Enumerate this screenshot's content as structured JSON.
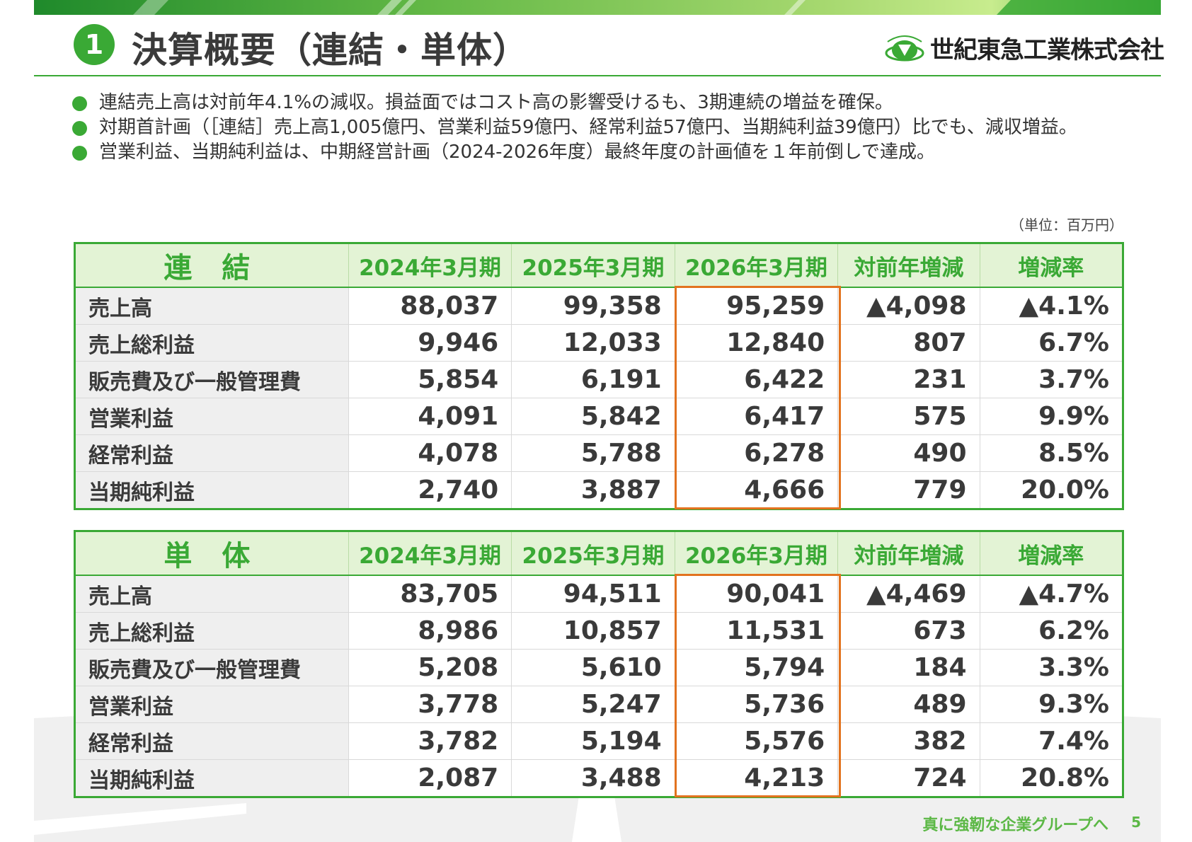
{
  "colors": {
    "accent": "#3aa935",
    "header_fill": "#e3f3d5",
    "highlight": "#e2731f"
  },
  "header": {
    "section_number": "1",
    "title": "決算概要（連結・単体）",
    "logo_text": "世紀東急工業株式会社",
    "logo_icon": "company-logo-icon"
  },
  "bullets": [
    "連結売上高は対前年4.1%の減収。損益面ではコスト高の影響受けるも、3期連続の増益を確保。",
    "対期首計画（［連結］売上高1,005億円、営業利益59億円、経常利益57億円、当期純利益39億円）比でも、減収増益。",
    "営業利益、当期純利益は、中期経営計画（2024-2026年度）最終年度の計画値を１年前倒しで達成。"
  ],
  "unit_note": "（単位：百万円）",
  "consolidated": {
    "section_label": "連 結",
    "headers": [
      "2024年3月期",
      "2025年3月期",
      "2026年3月期",
      "対前年増減",
      "増減率"
    ],
    "rows": [
      {
        "label": "売上高",
        "values": [
          "88,037",
          "99,358",
          "95,259",
          "▲4,098",
          "▲4.1%"
        ]
      },
      {
        "label": "売上総利益",
        "values": [
          "9,946",
          "12,033",
          "12,840",
          "807",
          "6.7%"
        ]
      },
      {
        "label": "販売費及び一般管理費",
        "values": [
          "5,854",
          "6,191",
          "6,422",
          "231",
          "3.7%"
        ]
      },
      {
        "label": "営業利益",
        "values": [
          "4,091",
          "5,842",
          "6,417",
          "575",
          "9.9%"
        ]
      },
      {
        "label": "経常利益",
        "values": [
          "4,078",
          "5,788",
          "6,278",
          "490",
          "8.5%"
        ]
      },
      {
        "label": "当期純利益",
        "values": [
          "2,740",
          "3,887",
          "4,666",
          "779",
          "20.0%"
        ]
      }
    ]
  },
  "standalone": {
    "section_label": "単 体",
    "headers": [
      "2024年3月期",
      "2025年3月期",
      "2026年3月期",
      "対前年増減",
      "増減率"
    ],
    "rows": [
      {
        "label": "売上高",
        "values": [
          "83,705",
          "94,511",
          "90,041",
          "▲4,469",
          "▲4.7%"
        ]
      },
      {
        "label": "売上総利益",
        "values": [
          "8,986",
          "10,857",
          "11,531",
          "673",
          "6.2%"
        ]
      },
      {
        "label": "販売費及び一般管理費",
        "values": [
          "5,208",
          "5,610",
          "5,794",
          "184",
          "3.3%"
        ]
      },
      {
        "label": "営業利益",
        "values": [
          "3,778",
          "5,247",
          "5,736",
          "489",
          "9.3%"
        ]
      },
      {
        "label": "経常利益",
        "values": [
          "3,782",
          "5,194",
          "5,576",
          "382",
          "7.4%"
        ]
      },
      {
        "label": "当期純利益",
        "values": [
          "2,087",
          "3,488",
          "4,213",
          "724",
          "20.8%"
        ]
      }
    ]
  },
  "footer": {
    "tagline": "真に強靭な企業グループへ",
    "page_number": "5"
  }
}
